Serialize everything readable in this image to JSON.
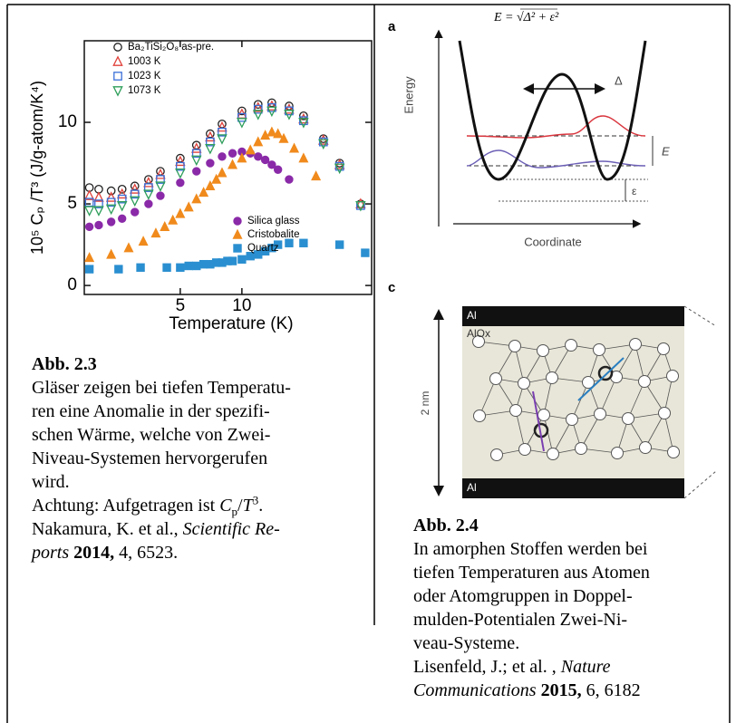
{
  "chart_data": {
    "type": "scatter",
    "x_label": "Temperature (K)",
    "y_label": "10⁵ Cₚ /T³ (J/g-atom/K⁴)",
    "xlim": [
      1.7,
      43
    ],
    "xticks": [
      5,
      10
    ],
    "x_log": true,
    "ylim": [
      -0.55,
      15
    ],
    "yticks": [
      0,
      5,
      10
    ],
    "series": [
      {
        "name": "Ba₂TiSi₂O₈ as-pre.",
        "color": "#222222",
        "marker": "circle",
        "filled": false,
        "x": [
          1.8,
          2,
          2.3,
          2.6,
          3,
          3.5,
          4,
          5,
          6,
          7,
          8,
          10,
          12,
          14,
          17,
          20,
          25,
          30,
          38
        ],
        "values": [
          6.0,
          5.9,
          5.8,
          5.9,
          6.1,
          6.5,
          7.0,
          7.8,
          8.6,
          9.3,
          9.9,
          10.7,
          11.1,
          11.2,
          11.0,
          10.4,
          9.0,
          7.5,
          5.0
        ]
      },
      {
        "name": "1003 K",
        "color": "#e0413a",
        "marker": "triangle",
        "filled": false,
        "x": [
          1.8,
          2,
          2.3,
          2.6,
          3,
          3.5,
          4,
          5,
          6,
          7,
          8,
          10,
          12,
          14,
          17,
          20,
          25,
          30,
          38
        ],
        "values": [
          5.5,
          5.4,
          5.4,
          5.6,
          5.9,
          6.3,
          6.8,
          7.6,
          8.4,
          9.1,
          9.7,
          10.5,
          10.9,
          11.0,
          10.8,
          10.2,
          8.9,
          7.4,
          5.0
        ]
      },
      {
        "name": "1023 K",
        "color": "#3a6fd8",
        "marker": "square",
        "filled": false,
        "x": [
          1.8,
          2,
          2.3,
          2.6,
          3,
          3.5,
          4,
          5,
          6,
          7,
          8,
          10,
          12,
          14,
          17,
          20,
          25,
          30,
          38
        ],
        "values": [
          5.1,
          5.0,
          5.1,
          5.3,
          5.6,
          6.0,
          6.5,
          7.3,
          8.1,
          8.8,
          9.4,
          10.3,
          10.8,
          10.9,
          10.7,
          10.1,
          8.8,
          7.3,
          4.9
        ]
      },
      {
        "name": "1073 K",
        "color": "#2e9e5a",
        "marker": "triangle-down",
        "filled": false,
        "x": [
          1.8,
          2,
          2.3,
          2.6,
          3,
          3.5,
          4,
          5,
          6,
          7,
          8,
          10,
          12,
          14,
          17,
          20,
          25,
          30,
          38
        ],
        "values": [
          4.6,
          4.6,
          4.7,
          4.9,
          5.2,
          5.6,
          6.1,
          6.9,
          7.7,
          8.4,
          9.0,
          10.0,
          10.5,
          10.7,
          10.5,
          10.0,
          8.7,
          7.2,
          4.9
        ]
      },
      {
        "name": "Silica glass",
        "color": "#8a2aa8",
        "marker": "circle",
        "filled": true,
        "x": [
          1.8,
          2,
          2.3,
          2.6,
          3,
          3.5,
          4,
          5,
          6,
          7,
          8,
          9,
          10,
          11,
          12,
          13,
          14,
          15,
          17
        ],
        "values": [
          3.6,
          3.7,
          3.9,
          4.1,
          4.5,
          5.0,
          5.5,
          6.3,
          7.0,
          7.5,
          7.9,
          8.1,
          8.2,
          8.1,
          7.9,
          7.7,
          7.4,
          7.1,
          6.5
        ]
      },
      {
        "name": "Cristobalite",
        "color": "#f08a1c",
        "marker": "triangle",
        "filled": true,
        "x": [
          1.8,
          2.3,
          2.8,
          3.3,
          3.8,
          4.2,
          4.6,
          5,
          5.5,
          6,
          6.5,
          7,
          7.5,
          8,
          9,
          10,
          11,
          12,
          13,
          14,
          15,
          16,
          18,
          20,
          23
        ],
        "values": [
          1.7,
          1.9,
          2.3,
          2.7,
          3.2,
          3.6,
          4.0,
          4.4,
          4.8,
          5.3,
          5.7,
          6.1,
          6.5,
          6.9,
          7.4,
          7.8,
          8.3,
          8.8,
          9.2,
          9.4,
          9.3,
          9.0,
          8.4,
          7.8,
          6.7
        ]
      },
      {
        "name": "Quartz",
        "color": "#2a8fd0",
        "marker": "square",
        "filled": true,
        "x": [
          1.8,
          2.5,
          3.2,
          4.3,
          5,
          5.5,
          6,
          6.5,
          7,
          7.5,
          8,
          8.5,
          9,
          10,
          11,
          12,
          13,
          14,
          15,
          17,
          20,
          30,
          40
        ],
        "values": [
          1.0,
          1.0,
          1.1,
          1.1,
          1.1,
          1.2,
          1.2,
          1.3,
          1.3,
          1.4,
          1.4,
          1.5,
          1.5,
          1.6,
          1.8,
          1.9,
          2.1,
          2.3,
          2.5,
          2.6,
          2.6,
          2.5,
          2.0
        ]
      }
    ]
  },
  "figure_2_3": {
    "caption_title": "Abb. 2.3",
    "caption_lines": [
      [
        "Gläser zeigen bei tiefen Temperatu-"
      ],
      [
        "ren eine Anomalie in der spezifi-"
      ],
      [
        "schen Wärme, welche von Zwei-"
      ],
      [
        "Niveau-Systemen hervorgerufen"
      ],
      [
        "wird."
      ],
      [
        "Achtung: Aufgetragen ist",
        "C",
        "p",
        "/",
        "T",
        "3",
        "."
      ],
      [
        "Nakamura, K. et al.,",
        "Scientific Re-"
      ],
      [
        "ports",
        "2014,",
        "4, 6523."
      ]
    ]
  },
  "figure_2_4": {
    "panel_a": {
      "label": "a",
      "equation": "E = √Δ² + ε²",
      "y_label": "Energy",
      "x_label": "Coordinate",
      "delta": "Δ",
      "energy": "E",
      "epsilon": "ε"
    },
    "panel_c": {
      "label": "c",
      "top_layer": "Al",
      "oxide": "AlOx",
      "thickness": "2 nm",
      "bottom_layer": "Al"
    },
    "caption_title": "Abb. 2.4",
    "caption_lines": [
      [
        "In amorphen Stoffen werden bei"
      ],
      [
        "tiefen Temperaturen aus Atomen"
      ],
      [
        "oder Atomgruppen in Doppel-"
      ],
      [
        "mulden-Potentialen Zwei-Ni-"
      ],
      [
        "veau-Systeme."
      ],
      [
        "Lisenfeld, J.; et al. ,",
        "Nature"
      ],
      [
        "Communications",
        "2015,",
        "6, 6182"
      ]
    ]
  }
}
